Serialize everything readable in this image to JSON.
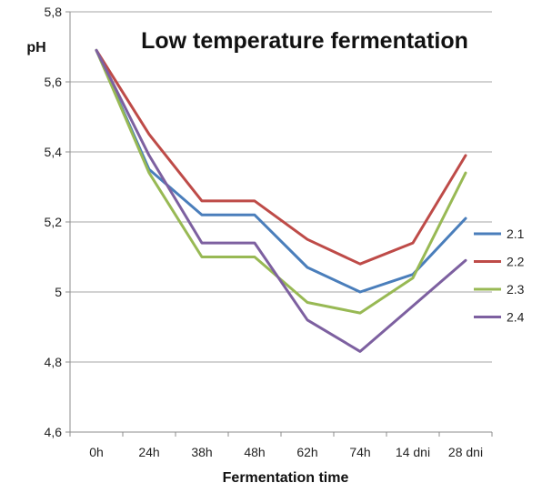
{
  "chart_data": {
    "type": "line",
    "title": "Low temperature fermentation",
    "xlabel": "Fermentation  time",
    "ylabel": "pH",
    "categories": [
      "0h",
      "24h",
      "38h",
      "48h",
      "62h",
      "74h",
      "14 dni",
      "28 dni"
    ],
    "ylim": [
      4.6,
      5.8
    ],
    "yticks": [
      "4,6",
      "4,8",
      "5",
      "5,2",
      "5,4",
      "5,6",
      "5,8"
    ],
    "grid": true,
    "legend_position": "right",
    "series": [
      {
        "name": "2.1",
        "color": "#4a7ebb",
        "values": [
          5.69,
          5.35,
          5.22,
          5.22,
          5.07,
          5.0,
          5.05,
          5.21
        ]
      },
      {
        "name": "2.2",
        "color": "#be4b48",
        "values": [
          5.69,
          5.45,
          5.26,
          5.26,
          5.15,
          5.08,
          5.14,
          5.39
        ]
      },
      {
        "name": "2.3",
        "color": "#98b954",
        "values": [
          5.69,
          5.34,
          5.1,
          5.1,
          4.97,
          4.94,
          5.04,
          5.34
        ]
      },
      {
        "name": "2.4",
        "color": "#7d60a0",
        "values": [
          5.69,
          5.39,
          5.14,
          5.14,
          4.92,
          4.83,
          4.96,
          5.09
        ]
      }
    ]
  }
}
